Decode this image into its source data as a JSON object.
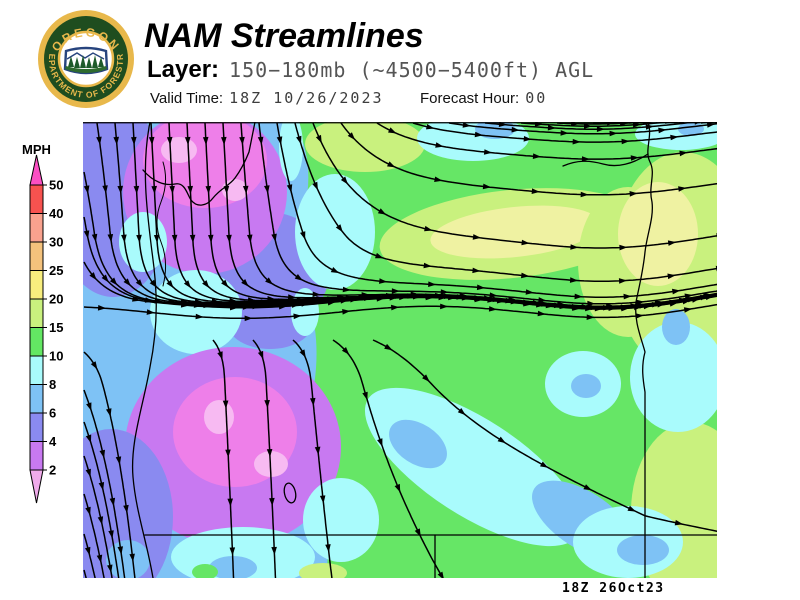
{
  "header": {
    "title": "NAM Streamlines",
    "layer_label": "Layer:",
    "layer_value": "150−180mb (~4500−5400ft) AGL",
    "valid_time_label": "Valid Time:",
    "valid_time_value": "18Z 10/26/2023",
    "forecast_hour_label": "Forecast Hour:",
    "forecast_hour_value": "00"
  },
  "logo": {
    "ring_text_top": "OREGON",
    "ring_text_bottom": "DEPARTMENT OF FORESTRY",
    "colors": {
      "gold": "#E8B84B",
      "dark_green": "#1F4D1F",
      "navy": "#27447E",
      "white": "#FFFFFF",
      "tree_green": "#1E5B2A",
      "field_green": "#2E6B2E"
    }
  },
  "colorbar": {
    "title": "MPH",
    "tick_labels": [
      "50",
      "40",
      "30",
      "25",
      "20",
      "15",
      "10",
      "8",
      "6",
      "4",
      "2"
    ],
    "segment_colors_top_to_bottom": [
      "#F7524F",
      "#F9A28E",
      "#F4C27C",
      "#F8EE7E",
      "#C9F17E",
      "#63E763",
      "#A9FBFC",
      "#7EC2F5",
      "#8A8AF0",
      "#C879F1"
    ],
    "above_max_color": "#FB4FC3",
    "below_min_color": "#F0ABEB"
  },
  "map": {
    "timestamp": "18Z 26Oct23",
    "flow_summary": "Northerly flow west of the Cascades turning easterly; westerly flow across central and eastern Oregon veering southeasterly in the south",
    "palette": {
      "green": "#66E666",
      "yellow_green": "#C9F17E",
      "pale_yellow": "#EFF2A2",
      "cyan": "#A9FBFC",
      "light_blue": "#7EC2F5",
      "periwinkle": "#8A8AF0",
      "violet": "#C879F1",
      "magenta": "#EE7FE9",
      "pale_pink": "#F7BAF2",
      "stream_line": "#000000",
      "boundary": "#000000"
    }
  }
}
